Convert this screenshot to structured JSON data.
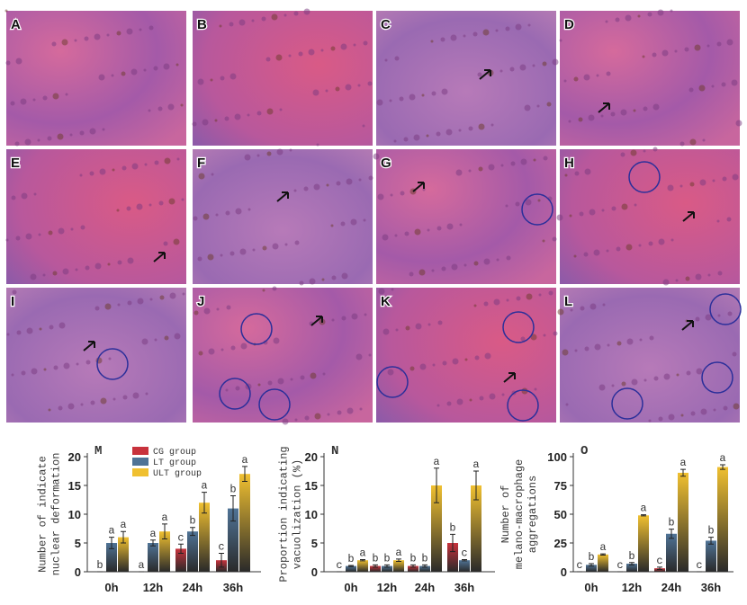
{
  "panels": [
    "A",
    "B",
    "C",
    "D",
    "E",
    "F",
    "G",
    "H",
    "I",
    "J",
    "K",
    "L"
  ],
  "chart_data": [
    {
      "type": "bar",
      "title": "M",
      "y_label": [
        "Number of  indicate",
        "nuclear deformation"
      ],
      "categories": [
        "0h",
        "12h",
        "24h",
        "36h"
      ],
      "ylim": [
        0,
        20
      ],
      "yticks": [
        0,
        5,
        10,
        15,
        20
      ],
      "legend": "top",
      "series": [
        {
          "name": "CG group",
          "color": "#c8323c",
          "values": [
            0,
            0,
            4,
            2
          ],
          "errors": [
            0,
            0,
            0.8,
            1.2
          ],
          "letters": [
            "b",
            "a",
            "c",
            "c"
          ]
        },
        {
          "name": "LT group",
          "color": "#4f7396",
          "values": [
            5,
            5,
            7,
            11
          ],
          "errors": [
            1,
            0.5,
            0.7,
            2.2
          ],
          "letters": [
            "a",
            "a",
            "b",
            "b"
          ]
        },
        {
          "name": "ULT group",
          "color": "#f0c030",
          "values": [
            6,
            7,
            12,
            17
          ],
          "errors": [
            1,
            1.3,
            1.8,
            1.3
          ],
          "letters": [
            "a",
            "a",
            "a",
            "a"
          ]
        }
      ]
    },
    {
      "type": "bar",
      "title": "N",
      "y_label": [
        "Proportion indicating",
        "vacuolization (%)"
      ],
      "categories": [
        "0h",
        "12h",
        "24h",
        "36h"
      ],
      "ylim": [
        0,
        20
      ],
      "yticks": [
        0,
        5,
        10,
        15,
        20
      ],
      "series": [
        {
          "name": "CG group",
          "color": "#c8323c",
          "values": [
            0,
            1,
            1,
            5
          ],
          "errors": [
            0,
            0.2,
            0.2,
            1.5
          ],
          "letters": [
            "c",
            "b",
            "b",
            "b"
          ]
        },
        {
          "name": "LT group",
          "color": "#4f7396",
          "values": [
            1,
            1,
            1,
            2
          ],
          "errors": [
            0.1,
            0.2,
            0.2,
            0.1
          ],
          "letters": [
            "b",
            "b",
            "b",
            "c"
          ]
        },
        {
          "name": "ULT group",
          "color": "#f0c030",
          "values": [
            2,
            2,
            15,
            15
          ],
          "errors": [
            0.1,
            0.2,
            3,
            2.5
          ],
          "letters": [
            "a",
            "a",
            "a",
            "a"
          ]
        }
      ]
    },
    {
      "type": "bar",
      "title": "O",
      "y_label": [
        "Number of",
        "melano-macrophage",
        "aggregations"
      ],
      "categories": [
        "0h",
        "12h",
        "24h",
        "36h"
      ],
      "ylim": [
        0,
        100
      ],
      "yticks": [
        0,
        25,
        50,
        75,
        100
      ],
      "series": [
        {
          "name": "CG group",
          "color": "#c8323c",
          "values": [
            0,
            0,
            3,
            0
          ],
          "errors": [
            0,
            0,
            1,
            0
          ],
          "letters": [
            "c",
            "c",
            "c",
            "c"
          ]
        },
        {
          "name": "LT group",
          "color": "#4f7396",
          "values": [
            6,
            7,
            33,
            27
          ],
          "errors": [
            1,
            1,
            4,
            3
          ],
          "letters": [
            "b",
            "b",
            "b",
            "b"
          ]
        },
        {
          "name": "ULT group",
          "color": "#f0c030",
          "values": [
            15,
            49,
            86,
            91
          ],
          "errors": [
            0.5,
            0.5,
            3,
            2
          ],
          "letters": [
            "a",
            "a",
            "a",
            "a"
          ]
        }
      ]
    }
  ]
}
